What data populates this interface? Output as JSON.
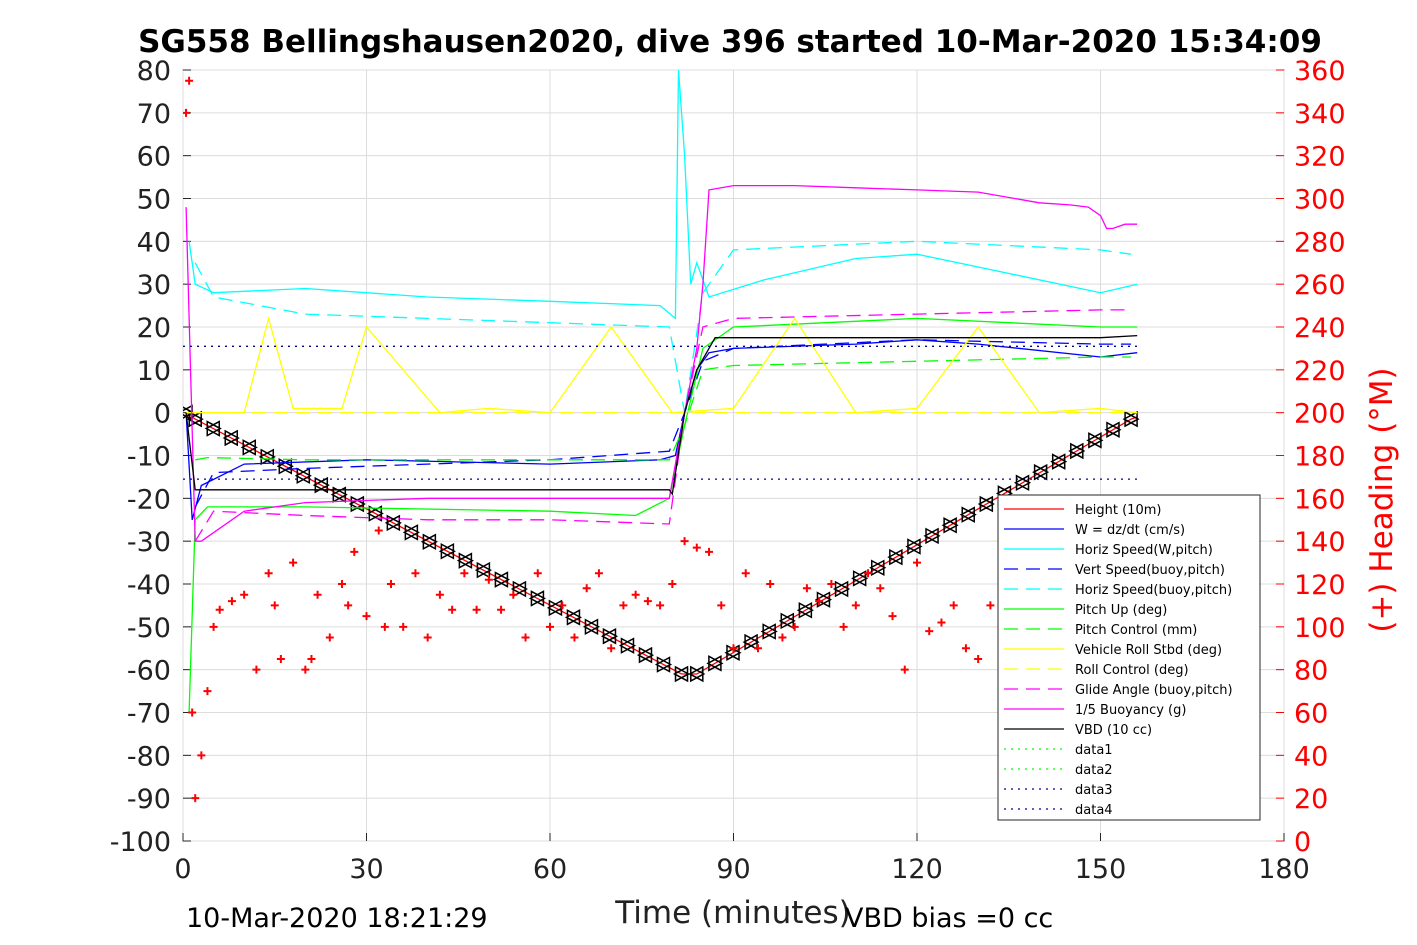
{
  "title": "SG558 Bellingshausen2020, dive 396 started 10-Mar-2020 15:34:09",
  "footer": {
    "left": "10-Mar-2020 18:21:29",
    "right": "VBD bias =0 cc"
  },
  "colors": {
    "red": "#ff0000",
    "blue": "#0000ff",
    "cyan": "#00ffff",
    "green": "#00ff00",
    "yellow": "#ffff00",
    "magenta": "#ff00ff",
    "black": "#000000",
    "darkblue": "#00008b"
  },
  "chart_data": {
    "type": "line",
    "title": "SG558 Bellingshausen2020, dive 396 started 10-Mar-2020 15:34:09",
    "xlabel": "Time (minutes)",
    "ylabel": "",
    "ylabel_right": "(+) Heading (°M)",
    "xlim": [
      0,
      180
    ],
    "ylim": [
      -100,
      80
    ],
    "ylim_right": [
      0,
      360
    ],
    "xticks": [
      "0",
      "30",
      "60",
      "90",
      "120",
      "150",
      "180"
    ],
    "yticks": [
      "80",
      "70",
      "60",
      "50",
      "40",
      "30",
      "20",
      "10",
      "0",
      "-10",
      "-20",
      "-30",
      "-40",
      "-50",
      "-60",
      "-70",
      "-80",
      "-90",
      "-100"
    ],
    "yticks_right": [
      "360",
      "340",
      "320",
      "300",
      "280",
      "260",
      "240",
      "220",
      "200",
      "180",
      "160",
      "140",
      "120",
      "100",
      "80",
      "60",
      "40",
      "20",
      "0"
    ],
    "grid": true,
    "legend_position": "lower-right",
    "legend": [
      {
        "label": "Height (10m)",
        "color": "#ff0000",
        "dash": "solid"
      },
      {
        "label": "W = dz/dt (cm/s)",
        "color": "#0000ff",
        "dash": "solid"
      },
      {
        "label": "Horiz Speed(W,pitch)",
        "color": "#00ffff",
        "dash": "solid"
      },
      {
        "label": "Vert Speed(buoy,pitch)",
        "color": "#0000ff",
        "dash": "dashed"
      },
      {
        "label": "Horiz Speed(buoy,pitch)",
        "color": "#00ffff",
        "dash": "dashed"
      },
      {
        "label": "Pitch Up (deg)",
        "color": "#00ff00",
        "dash": "solid"
      },
      {
        "label": "Pitch Control (mm)",
        "color": "#00ff00",
        "dash": "dashed"
      },
      {
        "label": "Vehicle Roll Stbd (deg)",
        "color": "#ffff00",
        "dash": "solid"
      },
      {
        "label": "Roll Control (deg)",
        "color": "#ffff00",
        "dash": "dashed"
      },
      {
        "label": "Glide Angle (buoy,pitch)",
        "color": "#ff00ff",
        "dash": "dashed"
      },
      {
        "label": "1/5 Buoyancy (g)",
        "color": "#ff00ff",
        "dash": "solid"
      },
      {
        "label": "VBD (10 cc)",
        "color": "#000000",
        "dash": "solid"
      },
      {
        "label": "data1",
        "color": "#00ff00",
        "dash": "dotted"
      },
      {
        "label": "data2",
        "color": "#00ff00",
        "dash": "dotted"
      },
      {
        "label": "data3",
        "color": "#00008b",
        "dash": "dotted"
      },
      {
        "label": "data4",
        "color": "#00008b",
        "dash": "dotted"
      }
    ],
    "series": [
      {
        "name": "Height (10m)",
        "x": [
          0.5,
          2,
          81.5,
          84,
          155,
          156
        ],
        "y": [
          0,
          -1.5,
          -61,
          -61,
          -1.5,
          -1
        ]
      },
      {
        "name": "W = dz/dt (cm/s)",
        "x": [
          0.5,
          1.5,
          3,
          10,
          30,
          60,
          78,
          80.5,
          82,
          84,
          86,
          90,
          110,
          120,
          130,
          150,
          156
        ],
        "y": [
          0,
          -25,
          -17,
          -12,
          -11,
          -12,
          -11,
          -10,
          0,
          10,
          14,
          15,
          16,
          17,
          16,
          13,
          14
        ]
      },
      {
        "name": "Horiz Speed(W,pitch)",
        "x": [
          1,
          2,
          5,
          20,
          40,
          60,
          78,
          80.5,
          81,
          82,
          83,
          84,
          86,
          95,
          110,
          120,
          130,
          150,
          156
        ],
        "y": [
          40,
          30,
          28,
          29,
          27,
          26,
          25,
          22,
          80,
          60,
          30,
          35,
          27,
          31,
          36,
          37,
          34,
          28,
          30
        ]
      },
      {
        "name": "Vert Speed(buoy,pitch)",
        "x": [
          2,
          5,
          20,
          60,
          79.5,
          82,
          85,
          90,
          120,
          150,
          155
        ],
        "y": [
          -22,
          -14,
          -13,
          -11,
          -9,
          0,
          12,
          15,
          17,
          16,
          16
        ]
      },
      {
        "name": "Horiz Speed(buoy,pitch)",
        "x": [
          2,
          5,
          20,
          40,
          60,
          79.5,
          82,
          85,
          90,
          120,
          150,
          155
        ],
        "y": [
          35,
          27,
          23,
          22,
          21,
          20,
          0,
          28,
          38,
          40,
          38,
          37
        ]
      },
      {
        "name": "Pitch Up (deg)",
        "x": [
          1,
          2,
          4,
          20,
          60,
          74,
          79.5,
          82,
          85,
          90,
          120,
          150,
          156
        ],
        "y": [
          -70,
          -25,
          -22,
          -22,
          -23,
          -24,
          -20,
          -3,
          15,
          20,
          22,
          20,
          20
        ]
      },
      {
        "name": "Pitch Control (mm)",
        "x": [
          2,
          4,
          20,
          60,
          79.5,
          82,
          85,
          90,
          120,
          150,
          155
        ],
        "y": [
          -11,
          -10.5,
          -11,
          -11,
          -11,
          -3,
          10,
          11,
          12,
          13,
          13
        ]
      },
      {
        "name": "Vehicle Roll Stbd (deg)",
        "x": [
          0.5,
          10,
          14,
          18,
          26,
          30,
          42,
          50,
          60,
          70,
          80,
          90,
          100,
          110,
          120,
          130,
          140,
          150,
          156
        ],
        "y": [
          0,
          0,
          22,
          1,
          1,
          20,
          0,
          1,
          0,
          20,
          0,
          1,
          22,
          0,
          1,
          20,
          0,
          1,
          0
        ]
      },
      {
        "name": "Roll Control (deg)",
        "x": [
          0.5,
          20,
          40,
          60,
          80,
          100,
          120,
          140,
          156
        ],
        "y": [
          0,
          0,
          0,
          0,
          0,
          0,
          0,
          0,
          0
        ]
      },
      {
        "name": "Glide Angle (buoy,pitch)",
        "x": [
          2,
          5,
          20,
          40,
          60,
          79.5,
          82,
          85,
          90,
          120,
          150,
          155
        ],
        "y": [
          -30,
          -23,
          -24,
          -25,
          -25,
          -26,
          0,
          20,
          22,
          23,
          24,
          24
        ]
      },
      {
        "name": "1/5 Buoyancy (g)",
        "x": [
          0.5,
          2,
          3,
          10,
          20,
          40,
          60,
          79.5,
          82,
          84,
          85,
          86,
          90,
          100,
          110,
          120,
          130,
          140,
          145,
          148,
          150,
          151,
          152,
          154,
          156
        ],
        "y": [
          48,
          -30,
          -30,
          -23,
          -21,
          -20,
          -20,
          -20,
          0,
          15,
          30,
          52,
          53,
          53,
          52.5,
          52,
          51.5,
          49,
          48.5,
          48,
          46,
          43,
          43,
          44,
          44
        ]
      },
      {
        "name": "VBD (10 cc)",
        "x": [
          0.5,
          2,
          79.5,
          80,
          82,
          84,
          86,
          87,
          90,
          110,
          120,
          130,
          140,
          150,
          156
        ],
        "y": [
          0,
          -18,
          -18,
          -19,
          0,
          10,
          15,
          17.5,
          17.5,
          17.5,
          17.5,
          17.5,
          17.5,
          17.5,
          18
        ]
      },
      {
        "name": "data3",
        "x": [
          0,
          156
        ],
        "y": [
          15.5,
          15.5
        ]
      },
      {
        "name": "data4",
        "x": [
          0,
          156
        ],
        "y": [
          -15.5,
          -15.5
        ]
      },
      {
        "name": "Heading",
        "axis": "right",
        "marker": "+",
        "x": [
          0.5,
          1,
          1.5,
          2,
          3,
          4,
          5,
          6,
          8,
          10,
          12,
          14,
          15,
          16,
          18,
          20,
          21,
          22,
          24,
          26,
          27,
          28,
          30,
          32,
          33,
          34,
          36,
          38,
          40,
          42,
          44,
          46,
          48,
          50,
          52,
          54,
          56,
          58,
          60,
          62,
          64,
          66,
          68,
          70,
          72,
          74,
          76,
          78,
          80,
          82,
          84,
          86,
          88,
          90,
          92,
          94,
          96,
          98,
          100,
          102,
          104,
          106,
          108,
          110,
          112,
          114,
          116,
          118,
          120,
          122,
          124,
          126,
          128,
          130,
          132,
          134
        ],
        "y": [
          340,
          355,
          60,
          20,
          40,
          70,
          100,
          108,
          112,
          115,
          80,
          125,
          110,
          85,
          130,
          80,
          85,
          115,
          95,
          120,
          110,
          135,
          105,
          145,
          100,
          120,
          100,
          125,
          95,
          115,
          108,
          125,
          108,
          122,
          108,
          115,
          95,
          125,
          100,
          110,
          95,
          118,
          125,
          90,
          110,
          115,
          112,
          110,
          120,
          140,
          137,
          135,
          110,
          90,
          125,
          90,
          120,
          95,
          100,
          118,
          112,
          120,
          100,
          110,
          125,
          118,
          105,
          80,
          130,
          98,
          102,
          110,
          90,
          85,
          110,
          145
        ]
      }
    ]
  }
}
